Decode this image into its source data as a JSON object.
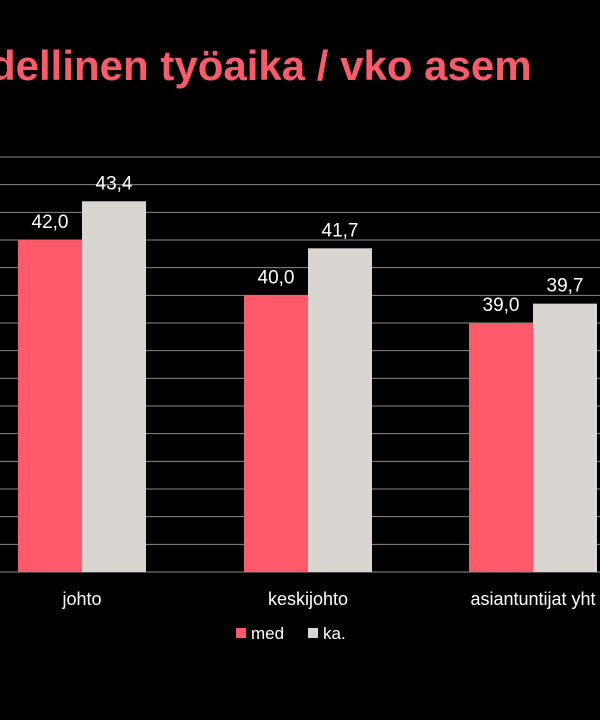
{
  "chart_data": {
    "type": "bar",
    "title": "dellinen työaika / vko asem",
    "categories": [
      "johto",
      "keskijohto",
      "asiantuntijat yht"
    ],
    "series": [
      {
        "name": "med",
        "values": [
          42.0,
          40.0,
          39.0
        ],
        "labels": [
          "42,0",
          "40,0",
          "39,0"
        ],
        "color": "#ff5a6a"
      },
      {
        "name": "ka.",
        "values": [
          43.4,
          41.7,
          39.7
        ],
        "labels": [
          "43,4",
          "41,7",
          "39,7"
        ],
        "color": "#d9d5d0"
      }
    ],
    "ylim": [
      30,
      45
    ],
    "grid": true,
    "legend": "bottom-center"
  },
  "colors": {
    "background": "#000000",
    "title": "#ff5a6a",
    "grid": "#8a8a8a",
    "text": "#ffffff"
  }
}
